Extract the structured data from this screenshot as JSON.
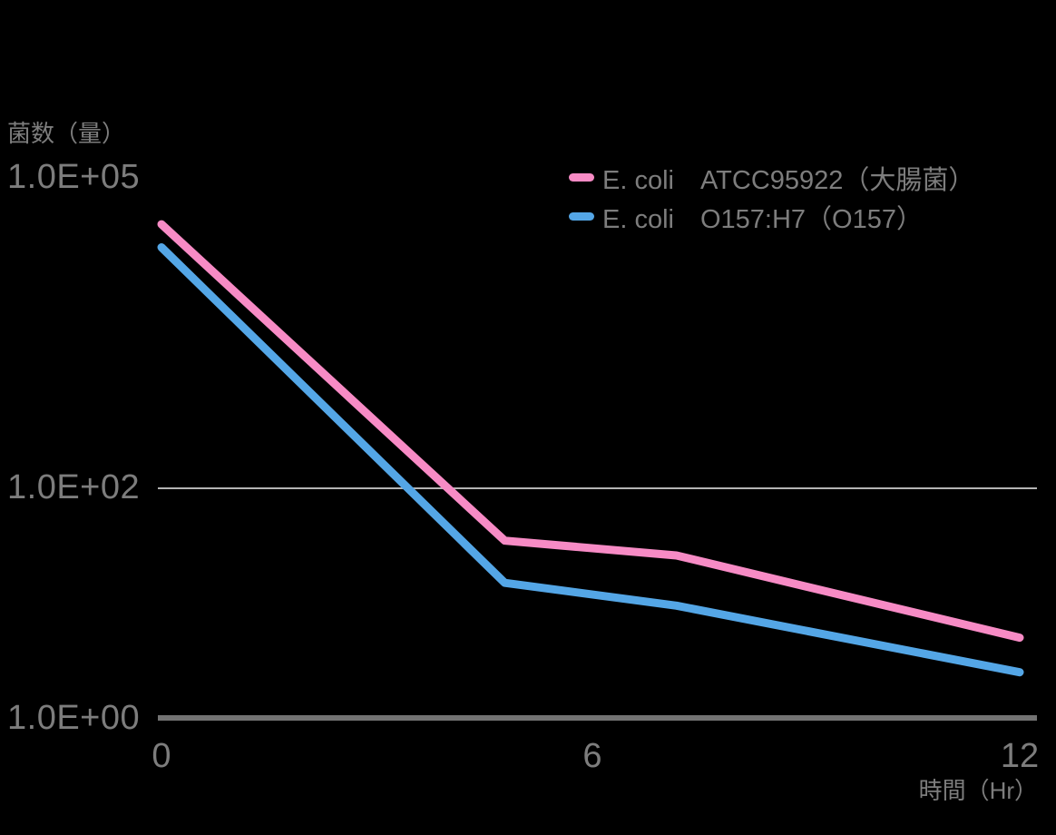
{
  "chart": {
    "y_axis_title": "菌数（量）",
    "x_axis_title": "時間（Hr）",
    "y_ticks": [
      "1.0E+05",
      "1.0E+02",
      "1.0E+00"
    ],
    "x_ticks": [
      "0",
      "6",
      "12"
    ],
    "colors": {
      "background": "#000000",
      "text": "#7d7d7d",
      "gridline": "#b3b3b3",
      "axis_line": "#737373"
    }
  },
  "chart_data": {
    "type": "line",
    "title": "",
    "xlabel": "時間（Hr）",
    "ylabel": "菌数（量）",
    "x": [
      0,
      4.8,
      7.2,
      12
    ],
    "x_ticks": [
      0,
      6,
      12
    ],
    "xlim": [
      0,
      12
    ],
    "y_scale": "log10",
    "ylim": [
      1,
      100000
    ],
    "y_tick_values": [
      100000,
      100,
      1
    ],
    "y_tick_labels": [
      "1.0E+05",
      "1.0E+02",
      "1.0E+00"
    ],
    "gridline_y_value": 100,
    "grid": "single horizontal gridline at 1.0E+02",
    "legend_position": "top-right",
    "series": [
      {
        "name": "E. coli　ATCC95922（大腸菌）",
        "color": "#f78bc5",
        "values": [
          35000,
          35,
          26,
          5
        ]
      },
      {
        "name": "E. coli　O157:H7（O157）",
        "color": "#54a6e6",
        "values": [
          21000,
          15,
          9.5,
          2.5
        ]
      }
    ]
  }
}
